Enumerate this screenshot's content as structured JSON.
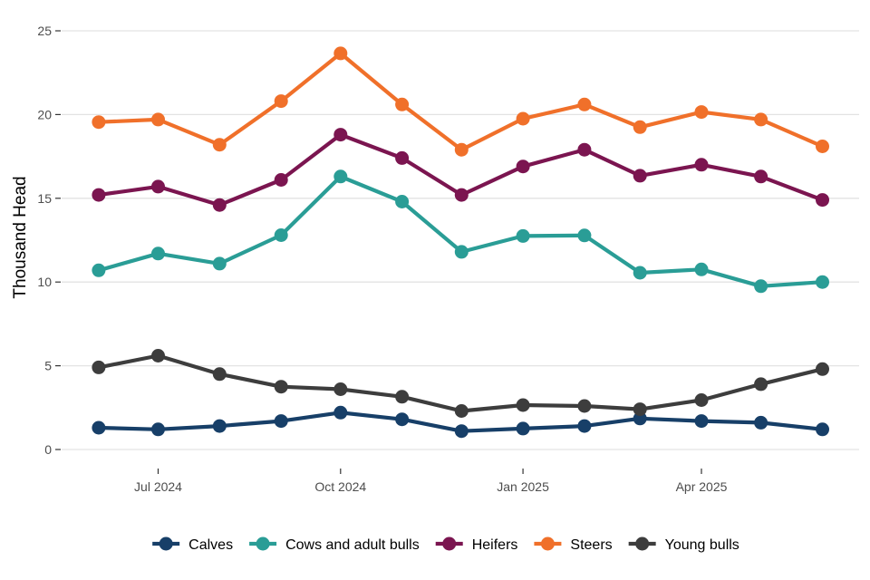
{
  "chart_data": {
    "type": "line",
    "ylabel": "Thousand Head",
    "xlabel": "",
    "ylim": [
      0,
      25
    ],
    "yticks": [
      0,
      5,
      10,
      15,
      20,
      25
    ],
    "x": [
      "2024-06-01",
      "2024-07-01",
      "2024-08-01",
      "2024-09-01",
      "2024-10-01",
      "2024-11-01",
      "2024-12-01",
      "2025-01-01",
      "2025-02-01",
      "2025-03-01",
      "2025-04-01",
      "2025-05-01",
      "2025-06-01"
    ],
    "xticks": [
      {
        "date": "2024-07-01",
        "label": "Jul 2024"
      },
      {
        "date": "2024-10-01",
        "label": "Oct 2024"
      },
      {
        "date": "2025-01-01",
        "label": "Jan 2025"
      },
      {
        "date": "2025-04-01",
        "label": "Apr 2025"
      }
    ],
    "grid": true,
    "legend_position": "bottom",
    "series": [
      {
        "name": "Calves",
        "color": "#173f68",
        "values": [
          1.3,
          1.2,
          1.4,
          1.7,
          2.2,
          1.8,
          1.1,
          1.25,
          1.4,
          1.85,
          1.7,
          1.6,
          1.2
        ]
      },
      {
        "name": "Cows and adult bulls",
        "color": "#2a9d96",
        "values": [
          10.7,
          11.7,
          11.1,
          12.8,
          16.3,
          14.8,
          11.8,
          12.75,
          12.78,
          10.55,
          10.75,
          9.75,
          10.0
        ]
      },
      {
        "name": "Heifers",
        "color": "#7b1550",
        "values": [
          15.2,
          15.7,
          14.6,
          16.1,
          18.8,
          17.4,
          15.2,
          16.9,
          17.9,
          16.35,
          17.0,
          16.3,
          14.9
        ]
      },
      {
        "name": "Steers",
        "color": "#f0702a",
        "values": [
          19.55,
          19.7,
          18.2,
          20.8,
          23.65,
          20.6,
          17.9,
          19.75,
          20.6,
          19.25,
          20.15,
          19.7,
          18.1
        ]
      },
      {
        "name": "Young bulls",
        "color": "#3d3d3d",
        "values": [
          4.9,
          5.6,
          4.5,
          3.75,
          3.6,
          3.15,
          2.3,
          2.65,
          2.6,
          2.4,
          2.95,
          3.9,
          4.8
        ]
      }
    ]
  }
}
